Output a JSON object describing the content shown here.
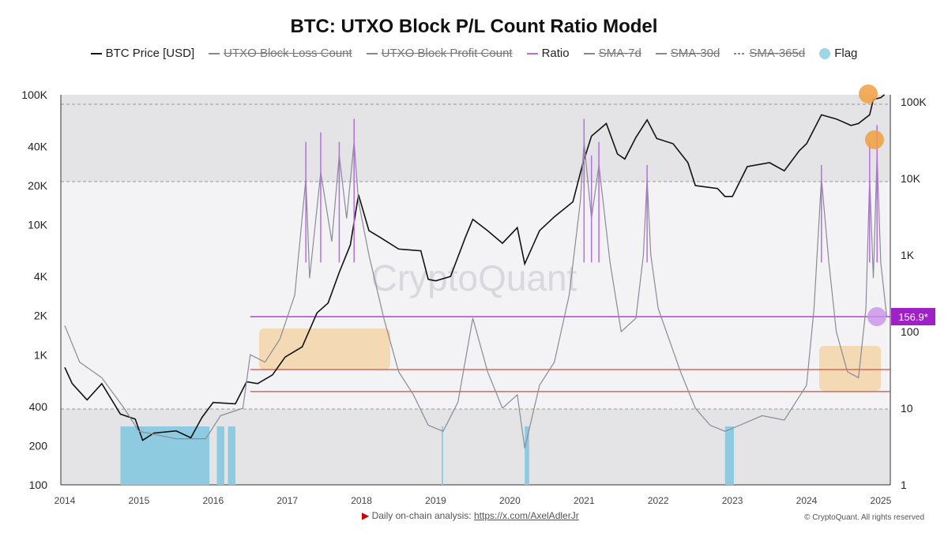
{
  "chart_data": {
    "type": "line",
    "title": "BTC: UTXO Block P/L Count Ratio Model",
    "legend": [
      {
        "name": "BTC Price [USD]",
        "color": "#111111",
        "enabled": true
      },
      {
        "name": "UTXO Block Loss Count",
        "color": "#888888",
        "enabled": false
      },
      {
        "name": "UTXO Block Profit Count",
        "color": "#888888",
        "enabled": false
      },
      {
        "name": "Ratio",
        "color": "#b56ee0",
        "enabled": true
      },
      {
        "name": "SMA-7d",
        "color": "#888888",
        "enabled": false
      },
      {
        "name": "SMA-30d",
        "color": "#888888",
        "enabled": false
      },
      {
        "name": "SMA-365d",
        "color": "#888888",
        "enabled": false,
        "dashed": true
      },
      {
        "name": "Flag",
        "color": "#9fd6e6",
        "enabled": true
      }
    ],
    "legend_placement": "top",
    "x_ticks": [
      "2014",
      "2015",
      "2016",
      "2017",
      "2018",
      "2019",
      "2020",
      "2021",
      "2022",
      "2023",
      "2024",
      "2025"
    ],
    "y_left": {
      "scale": "log",
      "ticks": [
        "100",
        "200",
        "400",
        "1K",
        "2K",
        "4K",
        "10K",
        "20K",
        "40K",
        "100K"
      ],
      "tick_values": [
        100,
        200,
        400,
        1000,
        2000,
        4000,
        10000,
        20000,
        40000,
        100000
      ],
      "range": [
        100,
        100000
      ]
    },
    "y_right": {
      "scale": "log",
      "ticks": [
        "1",
        "10",
        "100",
        "1K",
        "10K",
        "100K"
      ],
      "tick_values": [
        1,
        10,
        100,
        1000,
        10000,
        100000
      ],
      "range": [
        1,
        200000
      ]
    },
    "series": [
      {
        "name": "BTC Price [USD]",
        "axis": "left",
        "color": "#111111",
        "points": [
          [
            2014.0,
            800
          ],
          [
            2014.1,
            600
          ],
          [
            2014.3,
            450
          ],
          [
            2014.5,
            600
          ],
          [
            2014.75,
            350
          ],
          [
            2014.95,
            320
          ],
          [
            2015.05,
            220
          ],
          [
            2015.2,
            250
          ],
          [
            2015.5,
            260
          ],
          [
            2015.7,
            230
          ],
          [
            2015.85,
            330
          ],
          [
            2016.0,
            430
          ],
          [
            2016.3,
            420
          ],
          [
            2016.45,
            620
          ],
          [
            2016.6,
            600
          ],
          [
            2016.8,
            700
          ],
          [
            2016.97,
            960
          ],
          [
            2017.2,
            1150
          ],
          [
            2017.4,
            2100
          ],
          [
            2017.55,
            2500
          ],
          [
            2017.7,
            4300
          ],
          [
            2017.85,
            7000
          ],
          [
            2017.96,
            17000
          ],
          [
            2018.1,
            9000
          ],
          [
            2018.25,
            8000
          ],
          [
            2018.5,
            6500
          ],
          [
            2018.8,
            6300
          ],
          [
            2018.9,
            3800
          ],
          [
            2019.0,
            3700
          ],
          [
            2019.2,
            4000
          ],
          [
            2019.4,
            8000
          ],
          [
            2019.5,
            11000
          ],
          [
            2019.7,
            9000
          ],
          [
            2019.9,
            7200
          ],
          [
            2020.1,
            9500
          ],
          [
            2020.2,
            5000
          ],
          [
            2020.4,
            9000
          ],
          [
            2020.6,
            11500
          ],
          [
            2020.85,
            15000
          ],
          [
            2020.98,
            29000
          ],
          [
            2021.1,
            48000
          ],
          [
            2021.3,
            60000
          ],
          [
            2021.45,
            35000
          ],
          [
            2021.55,
            32000
          ],
          [
            2021.7,
            47000
          ],
          [
            2021.85,
            64000
          ],
          [
            2021.98,
            46000
          ],
          [
            2022.2,
            42000
          ],
          [
            2022.4,
            30000
          ],
          [
            2022.5,
            20000
          ],
          [
            2022.8,
            19000
          ],
          [
            2022.9,
            16500
          ],
          [
            2023.0,
            16500
          ],
          [
            2023.2,
            28000
          ],
          [
            2023.5,
            30000
          ],
          [
            2023.7,
            26000
          ],
          [
            2023.9,
            37000
          ],
          [
            2024.0,
            42000
          ],
          [
            2024.2,
            70000
          ],
          [
            2024.4,
            65000
          ],
          [
            2024.6,
            58000
          ],
          [
            2024.7,
            60000
          ],
          [
            2024.85,
            70000
          ],
          [
            2024.9,
            92000
          ],
          [
            2025.0,
            95000
          ],
          [
            2025.05,
            100000
          ]
        ]
      },
      {
        "name": "Ratio",
        "axis": "right",
        "color": "#8a8a96",
        "points": [
          [
            2014.0,
            120
          ],
          [
            2014.2,
            40
          ],
          [
            2014.5,
            25
          ],
          [
            2014.8,
            10
          ],
          [
            2015.0,
            5
          ],
          [
            2015.5,
            4
          ],
          [
            2015.9,
            4
          ],
          [
            2016.1,
            8
          ],
          [
            2016.4,
            10
          ],
          [
            2016.5,
            50
          ],
          [
            2016.7,
            40
          ],
          [
            2016.9,
            80
          ],
          [
            2017.1,
            300
          ],
          [
            2017.25,
            10000
          ],
          [
            2017.3,
            500
          ],
          [
            2017.45,
            12000
          ],
          [
            2017.6,
            1500
          ],
          [
            2017.7,
            20000
          ],
          [
            2017.8,
            3000
          ],
          [
            2017.9,
            30000
          ],
          [
            2017.96,
            5000
          ],
          [
            2018.1,
            1000
          ],
          [
            2018.3,
            150
          ],
          [
            2018.5,
            30
          ],
          [
            2018.7,
            15
          ],
          [
            2018.9,
            6
          ],
          [
            2019.1,
            5
          ],
          [
            2019.3,
            12
          ],
          [
            2019.5,
            150
          ],
          [
            2019.7,
            30
          ],
          [
            2019.9,
            10
          ],
          [
            2020.1,
            15
          ],
          [
            2020.2,
            3
          ],
          [
            2020.4,
            20
          ],
          [
            2020.6,
            40
          ],
          [
            2020.8,
            300
          ],
          [
            2020.95,
            5000
          ],
          [
            2021.0,
            30000
          ],
          [
            2021.1,
            3000
          ],
          [
            2021.2,
            15000
          ],
          [
            2021.35,
            800
          ],
          [
            2021.5,
            100
          ],
          [
            2021.7,
            150
          ],
          [
            2021.8,
            1000
          ],
          [
            2021.85,
            10000
          ],
          [
            2021.9,
            1000
          ],
          [
            2022.0,
            200
          ],
          [
            2022.3,
            30
          ],
          [
            2022.5,
            10
          ],
          [
            2022.7,
            6
          ],
          [
            2022.9,
            5
          ],
          [
            2023.1,
            6
          ],
          [
            2023.4,
            8
          ],
          [
            2023.7,
            7
          ],
          [
            2024.0,
            20
          ],
          [
            2024.1,
            200
          ],
          [
            2024.2,
            10000
          ],
          [
            2024.3,
            800
          ],
          [
            2024.4,
            100
          ],
          [
            2024.55,
            30
          ],
          [
            2024.7,
            25
          ],
          [
            2024.8,
            200
          ],
          [
            2024.85,
            10000
          ],
          [
            2024.9,
            500
          ],
          [
            2024.95,
            20000
          ],
          [
            2025.0,
            800
          ],
          [
            2025.08,
            156.9
          ]
        ]
      },
      {
        "name": "Ratio spikes",
        "axis": "right",
        "color": "#b56ee0",
        "points": [
          [
            2017.25,
            30000
          ],
          [
            2017.45,
            40000
          ],
          [
            2017.7,
            30000
          ],
          [
            2017.9,
            60000
          ],
          [
            2021.0,
            60000
          ],
          [
            2021.1,
            20000
          ],
          [
            2021.2,
            30000
          ],
          [
            2021.85,
            15000
          ],
          [
            2024.2,
            15000
          ],
          [
            2024.85,
            30000
          ],
          [
            2024.95,
            50000
          ]
        ]
      }
    ],
    "flags": [
      [
        2014.75,
        2015.95
      ],
      [
        2016.05,
        2016.15
      ],
      [
        2016.2,
        2016.3
      ],
      [
        2019.08,
        2019.1
      ],
      [
        2020.2,
        2020.26
      ],
      [
        2022.9,
        2023.02
      ]
    ],
    "reference_lines": [
      {
        "axis": "right",
        "value": 156.9,
        "color": "#a020c8",
        "from": 2016.5
      },
      {
        "axis": "right",
        "value": 32,
        "color": "#d05040",
        "from": 2016.5
      },
      {
        "axis": "right",
        "value": 16.5,
        "color": "#d05040",
        "from": 2016.5
      }
    ],
    "current_value_label": "156.9*",
    "watermark": "CryptoQuant",
    "footer": {
      "text": "Daily on-chain analysis: ",
      "link": "https://x.com/AxelAdlerJr",
      "copyright": "© CryptoQuant. All rights reserved"
    }
  }
}
